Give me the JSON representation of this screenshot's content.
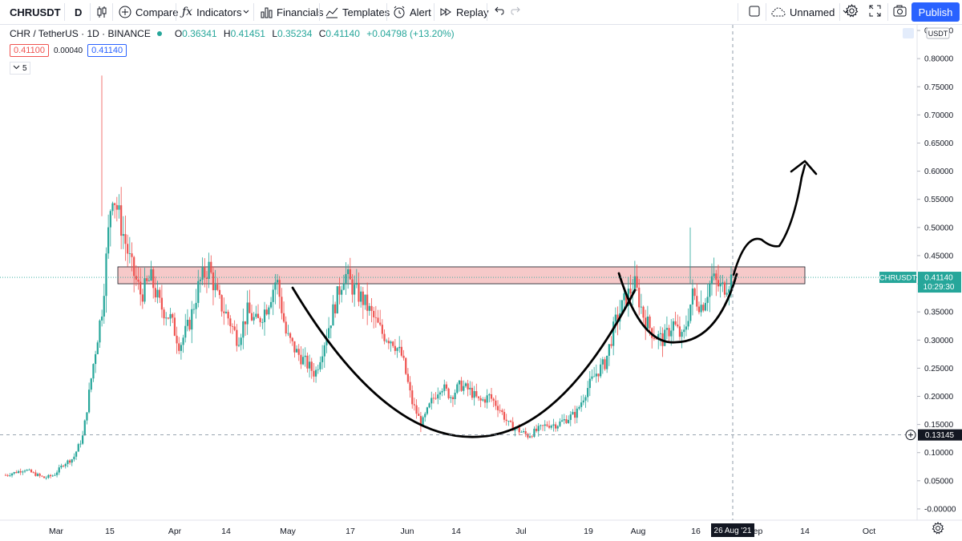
{
  "toolbar": {
    "symbol": "CHRUSDT",
    "interval": "D",
    "compare": "Compare",
    "indicators": "Indicators",
    "financials": "Financials",
    "templates": "Templates",
    "alert": "Alert",
    "replay": "Replay",
    "layout_name": "Unnamed",
    "publish": "Publish"
  },
  "legend": {
    "title": "CHR / TetherUS · 1D · BINANCE",
    "o_label": "O",
    "o": "0.36341",
    "h_label": "H",
    "h": "0.41451",
    "l_label": "L",
    "l": "0.35234",
    "c_label": "C",
    "c": "0.41140",
    "change": "+0.04798 (+13.20%)",
    "bid": "0.41100",
    "spread": "0.00040",
    "ask": "0.41140",
    "indicator_count": "5"
  },
  "colors": {
    "up": "#26a69a",
    "down": "#ef5350",
    "zone_fill": "#f6c9c9",
    "accent": "#2962ff"
  },
  "chart_data": {
    "type": "candlestick",
    "symbol": "CHRUSDT",
    "currency": "USDT",
    "y_ticks": [
      "-0.00000",
      "0.05000",
      "0.10000",
      "0.15000",
      "0.20000",
      "0.25000",
      "0.30000",
      "0.35000",
      "0.40000",
      "0.45000",
      "0.50000",
      "0.55000",
      "0.60000",
      "0.65000",
      "0.70000",
      "0.75000",
      "0.80000",
      "0.85000"
    ],
    "ylim": [
      -0.02,
      0.86
    ],
    "x_ticks": [
      "Mar",
      "15",
      "Apr",
      "14",
      "May",
      "17",
      "Jun",
      "14",
      "Jul",
      "19",
      "Aug",
      "16",
      "Sep",
      "14",
      "Oct"
    ],
    "last_price": "0.41140",
    "countdown": "10:29:30",
    "crosshair_price": "0.13145",
    "crosshair_date": "26 Aug '21",
    "resistance_zone": [
      0.4,
      0.43
    ],
    "close_path": [
      0.06,
      0.065,
      0.07,
      0.062,
      0.055,
      0.06,
      0.08,
      0.09,
      0.13,
      0.25,
      0.36,
      0.57,
      0.5,
      0.43,
      0.38,
      0.41,
      0.36,
      0.34,
      0.29,
      0.33,
      0.4,
      0.43,
      0.37,
      0.34,
      0.3,
      0.35,
      0.33,
      0.36,
      0.41,
      0.31,
      0.28,
      0.26,
      0.24,
      0.3,
      0.36,
      0.42,
      0.39,
      0.37,
      0.34,
      0.31,
      0.3,
      0.27,
      0.19,
      0.15,
      0.19,
      0.22,
      0.2,
      0.22,
      0.21,
      0.19,
      0.2,
      0.18,
      0.15,
      0.14,
      0.13,
      0.14,
      0.15,
      0.15,
      0.16,
      0.17,
      0.21,
      0.24,
      0.26,
      0.33,
      0.37,
      0.4,
      0.34,
      0.31,
      0.3,
      0.33,
      0.3,
      0.38,
      0.36,
      0.41,
      0.39,
      0.41
    ]
  }
}
